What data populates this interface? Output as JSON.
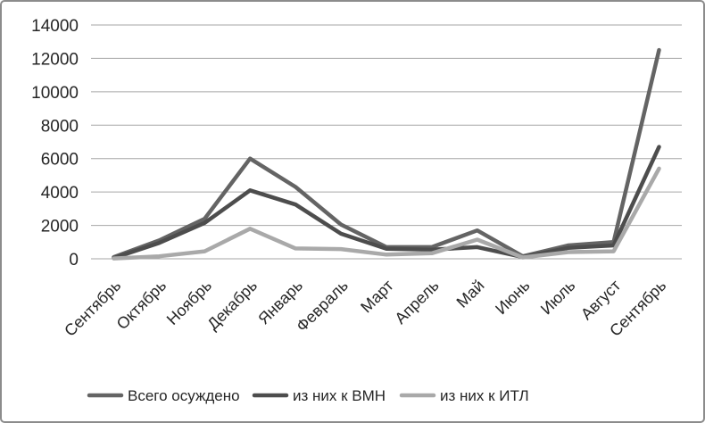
{
  "chart_data": {
    "type": "line",
    "title": "",
    "xlabel": "",
    "ylabel": "",
    "categories": [
      "Сентябрь",
      "Октябрь",
      "Ноябрь",
      "Декабрь",
      "Январь",
      "Февраль",
      "Март",
      "Апрель",
      "Май",
      "Июнь",
      "Июль",
      "Август",
      "Сентябрь"
    ],
    "series": [
      {
        "name": "Всего осуждено",
        "color": "#646464",
        "values": [
          100,
          1100,
          2400,
          6000,
          4300,
          2050,
          700,
          700,
          1700,
          150,
          800,
          1000,
          12500
        ]
      },
      {
        "name": "из них к ВМН",
        "color": "#4d4d4d",
        "values": [
          50,
          950,
          2150,
          4100,
          3250,
          1500,
          600,
          550,
          700,
          100,
          650,
          800,
          6700
        ]
      },
      {
        "name": "из них к ИТЛ",
        "color": "#a9a9a9",
        "values": [
          20,
          150,
          450,
          1800,
          620,
          580,
          250,
          330,
          1150,
          80,
          400,
          450,
          5400
        ]
      }
    ],
    "ylim": [
      0,
      14000
    ],
    "yticks": [
      0,
      2000,
      4000,
      6000,
      8000,
      10000,
      12000,
      14000
    ],
    "grid": "horizontal",
    "legend_position": "bottom"
  },
  "style": {
    "grid_color": "#a6a6a6",
    "text_color": "#262626",
    "frame_border_color": "#8c8c8c",
    "background": "#ffffff"
  }
}
